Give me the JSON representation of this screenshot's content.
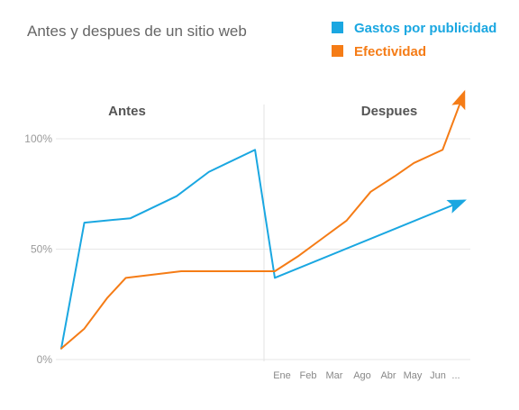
{
  "chart_data": {
    "type": "line",
    "title": "Antes y despues de un sitio web",
    "sections": [
      "Antes",
      "Despues"
    ],
    "y_ticks": [
      "100%",
      "50%",
      "0%"
    ],
    "x_tick_labels": [
      "Ene",
      "Feb",
      "Mar",
      "Ago",
      "Abr",
      "May",
      "Jun",
      "..."
    ],
    "ylim": [
      0,
      100
    ],
    "grid": true,
    "legend_placement": "top-right",
    "series": [
      {
        "name": "Gastos por publicidad",
        "color": "#1aa7e1",
        "antes": [
          [
            0,
            5
          ],
          [
            1,
            62
          ],
          [
            3,
            64
          ],
          [
            5,
            74
          ],
          [
            6.4,
            85
          ],
          [
            8.4,
            95
          ]
        ],
        "despues": [
          [
            0,
            37
          ],
          [
            7.9,
            72
          ]
        ],
        "trend_arrow": true
      },
      {
        "name": "Efectividad",
        "color": "#f57c16",
        "antes": [
          [
            0,
            5
          ],
          [
            1,
            14
          ],
          [
            2,
            28
          ],
          [
            2.8,
            37
          ],
          [
            5.2,
            40
          ],
          [
            9,
            40
          ]
        ],
        "despues": [
          [
            0,
            40
          ],
          [
            1,
            47
          ],
          [
            2,
            55
          ],
          [
            3,
            63
          ],
          [
            4,
            76
          ],
          [
            5,
            83
          ],
          [
            5.8,
            89
          ],
          [
            7,
            95
          ],
          [
            7.9,
            121
          ]
        ],
        "trend_arrow": true
      }
    ]
  }
}
